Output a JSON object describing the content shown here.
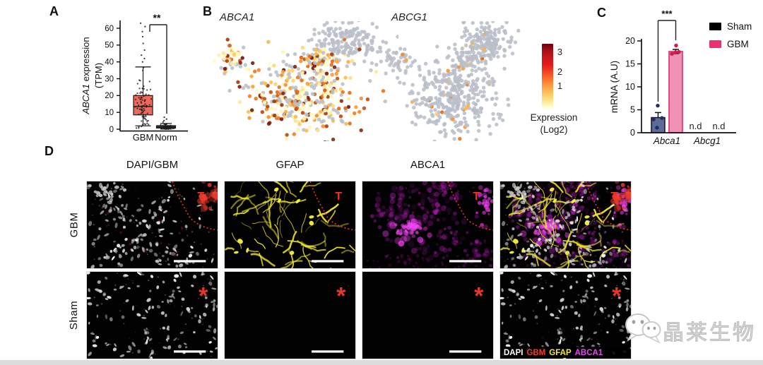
{
  "panel_a": {
    "label": "A",
    "significance": "**",
    "ylabel_gene": "ABCA1",
    "ylabel_rest": " expression",
    "ylabel_line2": "(TPM)",
    "chart_data": {
      "type": "box",
      "categories": [
        "GBM",
        "Norm"
      ],
      "ylabel": "ABCA1 expression (TPM)",
      "ylim": [
        0,
        65
      ],
      "yticks": [
        0,
        10,
        20,
        30,
        40,
        50,
        60
      ],
      "boxes": [
        {
          "group": "GBM",
          "q1": 8.5,
          "median": 13.5,
          "q3": 20,
          "whisker_low": 2,
          "whisker_high": 37,
          "box_color": "#ee685c",
          "n_points": 85,
          "outliers": [
            40,
            42,
            44,
            47,
            51,
            55,
            58,
            61,
            63
          ]
        },
        {
          "group": "Norm",
          "q1": 0.7,
          "median": 1.2,
          "q3": 2.1,
          "whisker_low": 0.1,
          "whisker_high": 3.4,
          "box_color": "#3a3a3a",
          "n_points": 58,
          "outliers": [
            4.3,
            5.1,
            6.0,
            7.1
          ]
        }
      ]
    }
  },
  "panel_b": {
    "label": "B",
    "plots": [
      {
        "title": "ABCA1"
      },
      {
        "title": "ABCG1"
      }
    ],
    "colorbar": {
      "ticks": [
        "3",
        "2",
        "1"
      ],
      "label_line1": "Expression",
      "label_line2": "(Log2)",
      "top_color": "#67000d",
      "bottom_color": "#ffffd9"
    },
    "chart_data": [
      {
        "type": "scatter",
        "title": "ABCA1",
        "seed": 5,
        "expressing_fraction": 0.72,
        "point_color_scale": "YlOrRd (Log2 expression 0-3)",
        "gray_color": "#b9bec8",
        "clusters": [
          {
            "name": "left-satellite",
            "cx": 0.115,
            "cy": 0.32,
            "rx": 0.075,
            "ry": 0.105,
            "n": 48
          },
          {
            "name": "upper-right",
            "cx": 0.735,
            "cy": 0.175,
            "rx": 0.165,
            "ry": 0.15,
            "n": 175,
            "always_gray": true
          },
          {
            "name": "main",
            "cx": 0.5,
            "cy": 0.625,
            "rx": 0.265,
            "ry": 0.3,
            "n": 390
          },
          {
            "name": "bridge",
            "cx": 0.575,
            "cy": 0.315,
            "rx": 0.1,
            "ry": 0.085,
            "n": 55
          }
        ]
      },
      {
        "type": "scatter",
        "title": "ABCG1",
        "seed": 6,
        "expressing_fraction": 0.045,
        "point_color_scale": "YlOrRd (Log2 expression 0-3)",
        "gray_color": "#b9bec8",
        "clusters": [
          {
            "name": "left-satellite",
            "cx": 0.115,
            "cy": 0.32,
            "rx": 0.075,
            "ry": 0.105,
            "n": 42
          },
          {
            "name": "upper-right",
            "cx": 0.735,
            "cy": 0.175,
            "rx": 0.165,
            "ry": 0.15,
            "n": 165,
            "always_gray": true
          },
          {
            "name": "main",
            "cx": 0.5,
            "cy": 0.625,
            "rx": 0.265,
            "ry": 0.3,
            "n": 370
          },
          {
            "name": "bridge",
            "cx": 0.575,
            "cy": 0.315,
            "rx": 0.1,
            "ry": 0.085,
            "n": 50
          }
        ]
      }
    ]
  },
  "panel_c": {
    "label": "C",
    "significance": "***",
    "ylabel": "mRNA (A.U)",
    "nd_label": "n.d",
    "legend": [
      {
        "label": "Sham",
        "color": "#000000"
      },
      {
        "label": "GBM",
        "color": "#e8336e"
      }
    ],
    "chart_data": {
      "type": "bar",
      "categories": [
        "Abca1",
        "Abcg1"
      ],
      "ylabel": "mRNA (A.U)",
      "ylim": [
        0,
        20
      ],
      "yticks": [
        0,
        5,
        10,
        15,
        20
      ],
      "series": [
        {
          "name": "Sham",
          "values": [
            3.3,
            null
          ],
          "sem": 1.1,
          "bar_fill": "#5d6b97",
          "bar_border": "#15151a",
          "points": [
            1.1,
            2.9,
            3.2,
            5.9
          ],
          "point_color": "#202c66"
        },
        {
          "name": "GBM",
          "values": [
            17.7,
            null
          ],
          "sem": 0.45,
          "bar_fill": "#f191b3",
          "bar_border": "#dd2f72",
          "points": [
            17.2,
            17.5,
            17.6,
            19.0
          ],
          "point_color": "#d31949"
        }
      ],
      "not_detected_category": "Abcg1"
    }
  },
  "panel_d": {
    "label": "D",
    "column_headers": [
      "DAPI/GBM",
      "GFAP",
      "ABCA1"
    ],
    "row_labels": [
      "GBM",
      "Sham"
    ],
    "tumor_marker": "T",
    "sham_marker": "*",
    "annotation_color": "#ee3424",
    "channel_colors": {
      "dapi": "#ffffff",
      "tumor": "#ef3b2c",
      "gfap": "#f3e82a",
      "abca1": "#e623e6"
    },
    "merge_legend": [
      {
        "text": "DAPI",
        "color": "#ffffff"
      },
      {
        "text": "GBM",
        "color": "#f03b2e"
      },
      {
        "text": "GFAP",
        "color": "#f5e63c"
      },
      {
        "text": "ABCA1",
        "color": "#e549f5"
      }
    ],
    "tiles": [
      {
        "name": "gbm-dapi",
        "channels": [
          "dapi",
          "tumor"
        ],
        "variant": "gbm",
        "annotation": "tumor",
        "scalebar": true,
        "show_channel_legend": false
      },
      {
        "name": "gbm-gfap",
        "channels": [
          "gfap"
        ],
        "variant": "gbm",
        "annotation": "tumor",
        "scalebar": true,
        "show_channel_legend": false
      },
      {
        "name": "gbm-abca1",
        "channels": [
          "abca1"
        ],
        "variant": "gbm",
        "annotation": "tumor",
        "scalebar": true,
        "show_channel_legend": false
      },
      {
        "name": "gbm-merge",
        "channels": [
          "abca1",
          "gfap",
          "dapi",
          "tumor"
        ],
        "variant": "gbm",
        "annotation": "tumor",
        "scalebar": false,
        "show_channel_legend": false
      },
      {
        "name": "sham-dapi",
        "channels": [
          "dapi"
        ],
        "variant": "sham",
        "annotation": "asterisk",
        "scalebar": true,
        "show_channel_legend": false
      },
      {
        "name": "sham-gfap",
        "channels": [],
        "variant": "sham",
        "annotation": "asterisk",
        "scalebar": true,
        "show_channel_legend": false
      },
      {
        "name": "sham-abca1",
        "channels": [],
        "variant": "sham",
        "annotation": "asterisk",
        "scalebar": true,
        "show_channel_legend": false
      },
      {
        "name": "sham-merge",
        "channels": [
          "dapi"
        ],
        "variant": "sham",
        "annotation": "asterisk",
        "scalebar": false,
        "show_channel_legend": true
      }
    ]
  },
  "watermark": {
    "text": "晶莱生物",
    "icon": "wechat-chat-bubbles-icon"
  }
}
